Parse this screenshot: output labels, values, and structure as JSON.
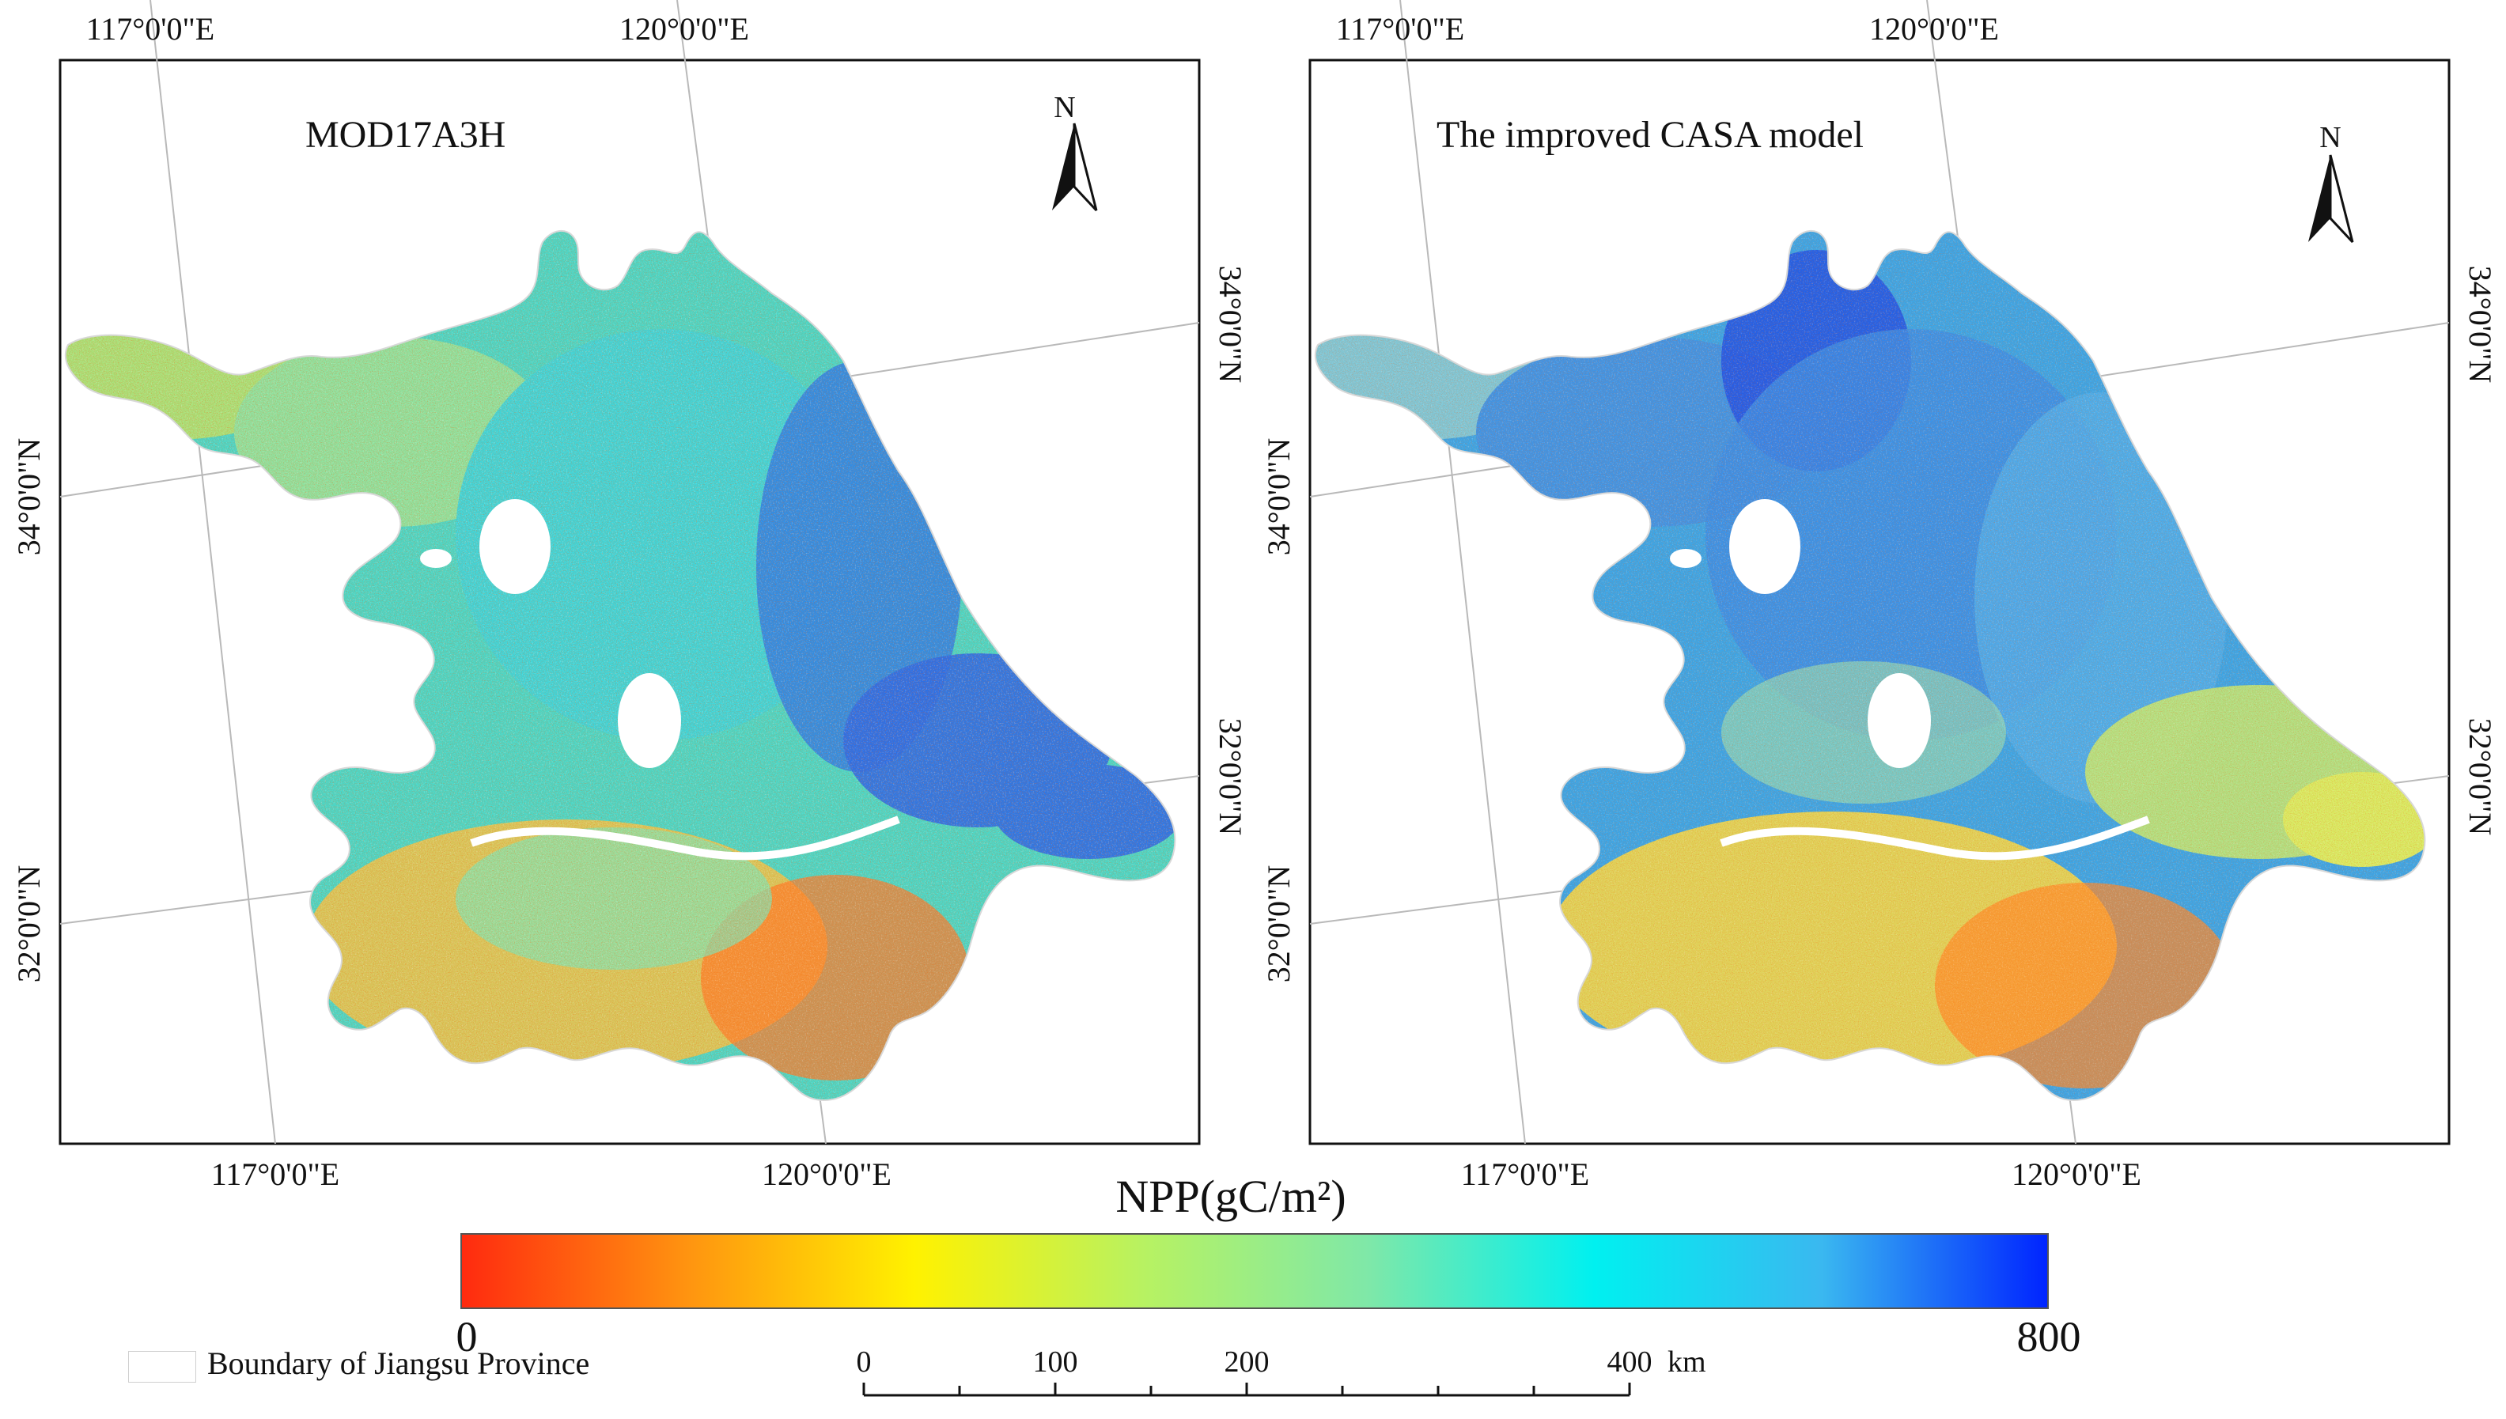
{
  "panels": [
    {
      "title": "MOD17A3H",
      "longitude_top": [
        "117°0'0\"E",
        "120°0'0\"E"
      ],
      "longitude_bottom": [
        "117°0'0\"E",
        "120°0'0\"E"
      ],
      "latitude_left": [
        "34°0'0\"N",
        "32°0'0\"N"
      ],
      "latitude_right": [
        "34°0'0\"N",
        "32°0'0\"N"
      ],
      "north_label": "N"
    },
    {
      "title": "The improved CASA model",
      "longitude_top": [
        "117°0'0\"E",
        "120°0'0\"E"
      ],
      "longitude_bottom": [
        "117°0'0\"E",
        "120°0'0\"E"
      ],
      "latitude_left": [
        "34°0'0\"N",
        "32°0'0\"N"
      ],
      "latitude_right": [
        "34°0'0\"N",
        "32°0'0\"N"
      ],
      "north_label": "N"
    }
  ],
  "colorbar": {
    "title": "NPP(gC/m²)",
    "min_label": "0",
    "max_label": "800",
    "colors": [
      "#ff2a0f",
      "#ff9410",
      "#fff200",
      "#b8f261",
      "#7fe8a8",
      "#00f0f0",
      "#3ab8f0",
      "#0024ff"
    ]
  },
  "legend": {
    "boundary_label": "Boundary of Jiangsu Province"
  },
  "scalebar": {
    "labels": [
      "0",
      "100",
      "200",
      "400"
    ],
    "unit": "km"
  },
  "colors": {
    "frame": "#111111",
    "graticule": "#b9b9b9"
  }
}
